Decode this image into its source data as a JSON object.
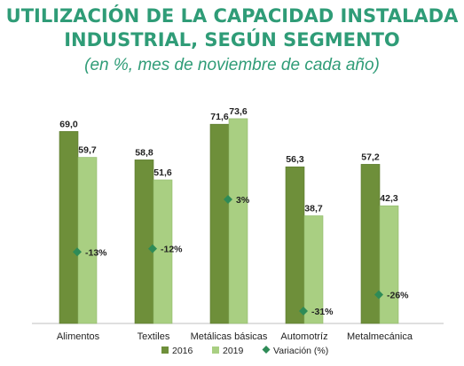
{
  "header": {
    "title_line1": "UTILIZACIÓN DE LA CAPACIDAD INSTALADA",
    "title_line2": "INDUSTRIAL, SEGÚN SEGMENTO",
    "subtitle": "(en %, mes de noviembre de cada año)"
  },
  "colors": {
    "title": "#2f9c77",
    "series_2016": "#6e8f3a",
    "series_2019": "#a9cf82",
    "variation": "#2e8b57"
  },
  "chart_data": {
    "type": "bar",
    "categories": [
      "Alimentos",
      "Textiles",
      "Metálicas básicas",
      "Automotríz",
      "Metalmecánica"
    ],
    "series": [
      {
        "name": "2016",
        "values": [
          69.0,
          58.8,
          71.6,
          56.3,
          57.2
        ],
        "labels": [
          "69,0",
          "58,8",
          "71,6",
          "56,3",
          "57,2"
        ]
      },
      {
        "name": "2019",
        "values": [
          59.7,
          51.6,
          73.6,
          38.7,
          42.3
        ],
        "labels": [
          "59,7",
          "51,6",
          "73,6",
          "38,7",
          "42,3"
        ]
      }
    ],
    "variation": {
      "name": "Variación (%)",
      "values": [
        -13,
        -12,
        3,
        -31,
        -26
      ],
      "labels": [
        "-13%",
        "-12%",
        "3%",
        "-31%",
        "-26%"
      ]
    },
    "ylim": [
      0,
      80
    ],
    "legend_position": "bottom",
    "grid": false
  }
}
